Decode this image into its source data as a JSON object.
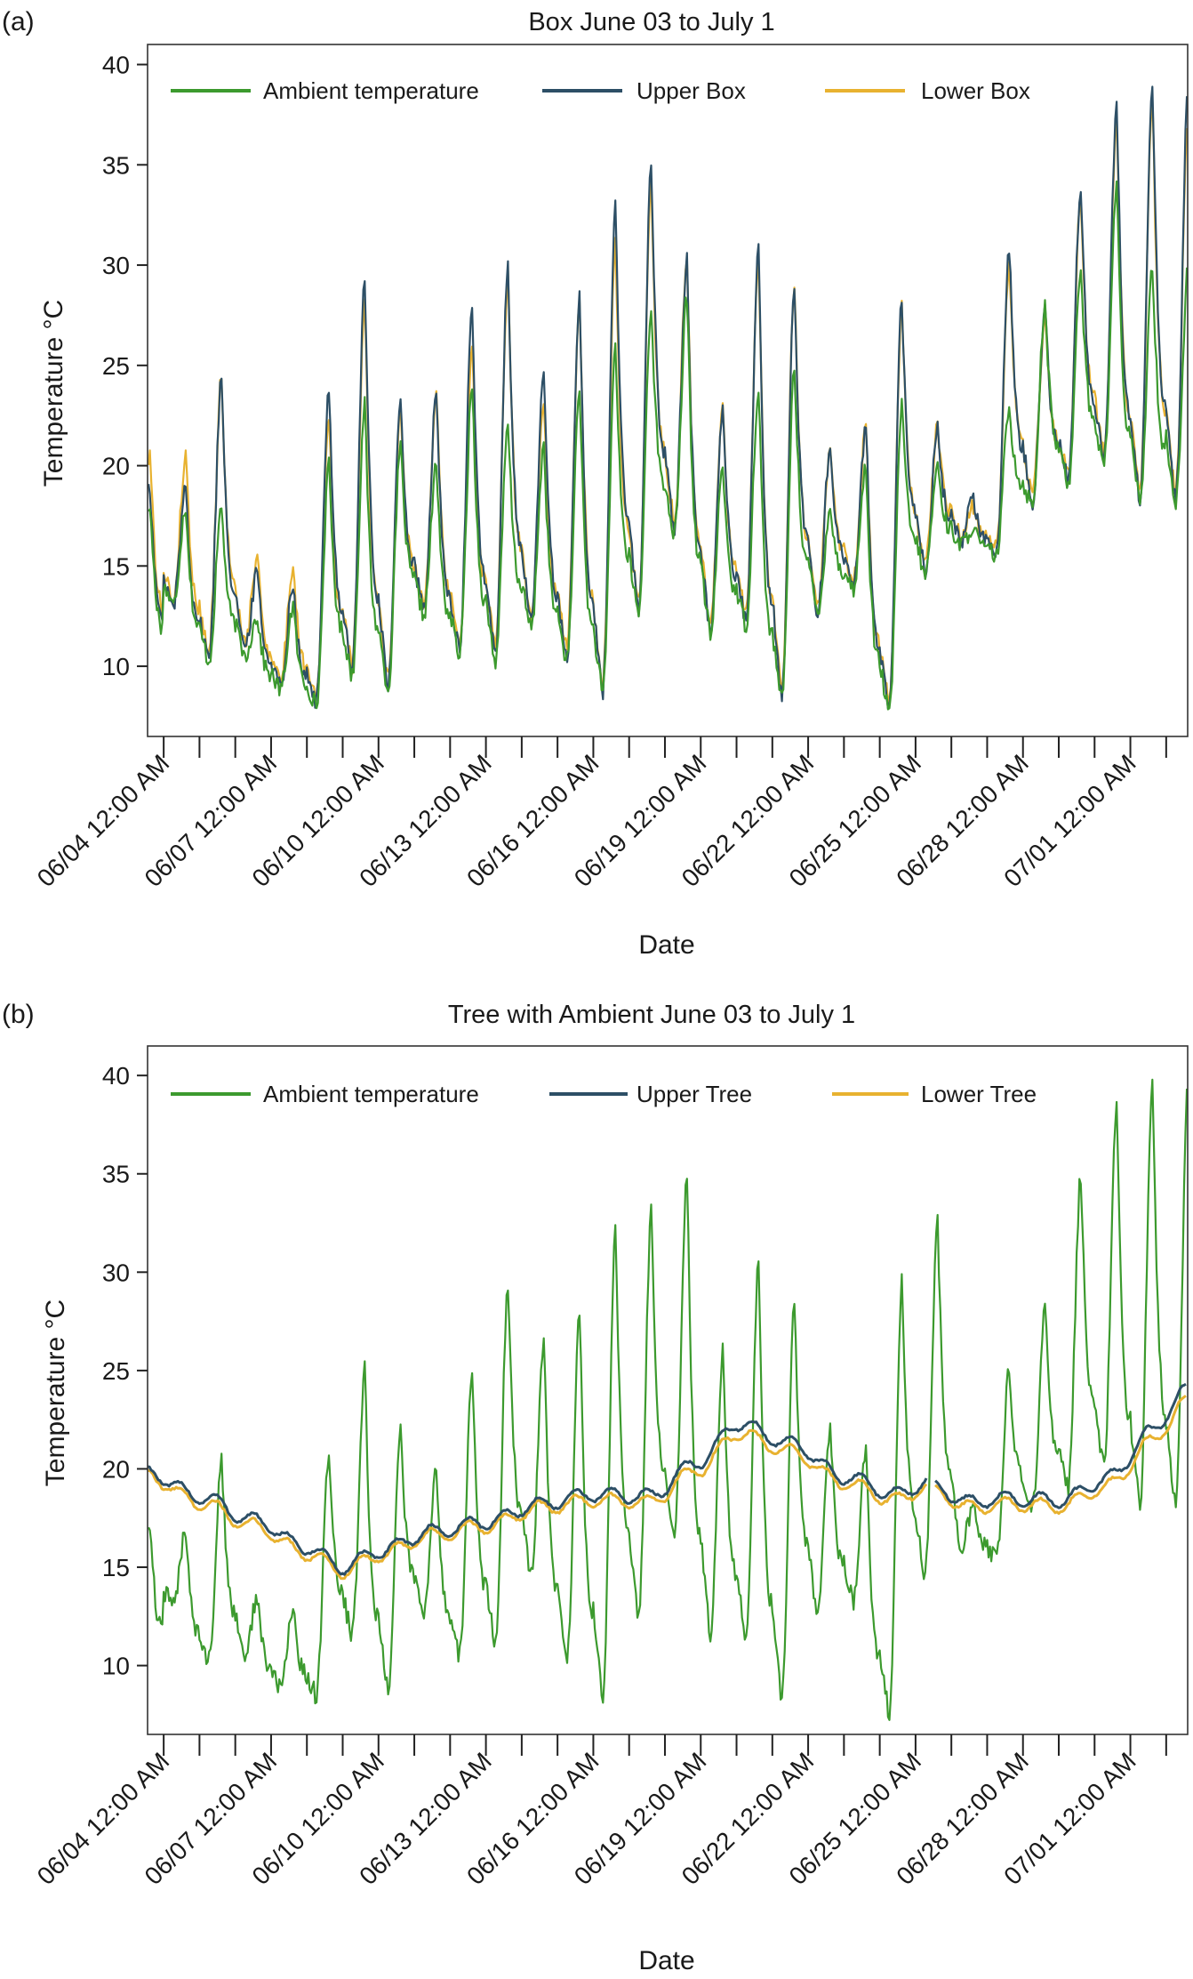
{
  "colors": {
    "ambient": "#3c9a2e",
    "upper": "#2d4f66",
    "lower": "#e8b230"
  },
  "chart_data": [
    {
      "type": "line",
      "panel_label": "(a)",
      "title": "Box June 03 to July 1",
      "xlabel": "Date",
      "ylabel": "Temperature °C",
      "ylim": [
        6.5,
        41
      ],
      "yticks": [
        10,
        15,
        20,
        25,
        30,
        35,
        40
      ],
      "xlim_days": [
        3.55,
        32.6
      ],
      "x_tick_labels": [
        "06/04 12:00 AM",
        "06/07 12:00 AM",
        "06/10 12:00 AM",
        "06/13 12:00 AM",
        "06/16 12:00 AM",
        "06/19 12:00 AM",
        "06/22 12:00 AM",
        "06/25 12:00 AM",
        "06/28 12:00 AM",
        "07/01 12:00 AM"
      ],
      "legend": [
        "Ambient temperature",
        "Upper Box",
        "Lower Box"
      ],
      "legend_position": "top",
      "series": [
        {
          "name": "Ambient temperature",
          "color_key": "ambient",
          "daily_min": [
            13.0,
            10.2,
            10.5,
            8.8,
            8.0,
            9.5,
            8.8,
            12.5,
            10.5,
            10.2,
            11.8,
            10.2,
            8.5,
            12.5,
            16.5,
            11.5,
            12.0,
            8.2,
            12.5,
            13.8,
            7.5,
            14.5,
            16.0,
            15.5,
            18.0,
            19.0,
            20.0,
            18.0
          ],
          "daily_max": [
            18.0,
            18.0,
            12.5,
            13.0,
            20.0,
            23.0,
            21.0,
            20.0,
            24.0,
            22.0,
            21.0,
            24.0,
            26.0,
            28.0,
            28.5,
            20.0,
            24.0,
            25.0,
            18.0,
            20.0,
            23.0,
            20.0,
            17.0,
            23.0,
            28.0,
            30.0,
            34.0,
            30.0
          ]
        },
        {
          "name": "Upper Box",
          "color_key": "upper",
          "daily_min": [
            13.0,
            10.4,
            10.7,
            9.0,
            8.2,
            9.7,
            9.0,
            12.7,
            10.7,
            10.4,
            12.0,
            10.4,
            8.7,
            12.7,
            16.7,
            11.7,
            12.2,
            8.4,
            12.7,
            14.0,
            7.7,
            14.7,
            16.2,
            15.7,
            18.2,
            19.2,
            20.2,
            18.2
          ],
          "daily_max": [
            19.0,
            24.5,
            14.8,
            14.2,
            24.0,
            29.3,
            23.3,
            23.5,
            28.0,
            30.0,
            24.8,
            28.5,
            33.0,
            35.0,
            30.5,
            23.0,
            31.0,
            29.0,
            21.0,
            22.0,
            28.3,
            22.0,
            18.5,
            31.0,
            28.0,
            34.0,
            38.0,
            39.3
          ]
        },
        {
          "name": "Lower Box",
          "color_key": "lower",
          "daily_min": [
            13.2,
            10.8,
            11.0,
            9.3,
            8.6,
            10.0,
            9.3,
            13.0,
            11.0,
            10.8,
            12.3,
            10.8,
            9.0,
            13.0,
            17.0,
            12.0,
            12.5,
            8.7,
            13.0,
            14.3,
            8.0,
            15.0,
            16.5,
            16.0,
            18.5,
            19.5,
            20.5,
            18.5
          ],
          "daily_max": [
            20.5,
            24.5,
            15.5,
            15.0,
            22.5,
            28.0,
            23.0,
            23.5,
            26.0,
            29.5,
            23.5,
            28.5,
            31.0,
            34.0,
            30.5,
            23.0,
            30.5,
            29.0,
            21.0,
            22.0,
            28.0,
            22.0,
            18.0,
            30.0,
            27.5,
            33.5,
            37.0,
            38.0
          ]
        }
      ]
    },
    {
      "type": "line",
      "panel_label": "(b)",
      "title": "Tree with Ambient June 03 to July 1",
      "xlabel": "Date",
      "ylabel": "Temperature °C",
      "ylim": [
        6.5,
        41.5
      ],
      "yticks": [
        10,
        15,
        20,
        25,
        30,
        35,
        40
      ],
      "xlim_days": [
        3.55,
        32.6
      ],
      "x_tick_labels": [
        "06/04 12:00 AM",
        "06/07 12:00 AM",
        "06/10 12:00 AM",
        "06/13 12:00 AM",
        "06/16 12:00 AM",
        "06/19 12:00 AM",
        "06/22 12:00 AM",
        "06/25 12:00 AM",
        "06/28 12:00 AM",
        "07/01 12:00 AM"
      ],
      "legend": [
        "Ambient temperature",
        "Upper Tree",
        "Lower Tree"
      ],
      "legend_position": "top",
      "series": [
        {
          "name": "Ambient temperature",
          "color_key": "ambient",
          "daily_min": [
            13.0,
            10.2,
            10.5,
            8.8,
            8.5,
            11.5,
            8.8,
            12.5,
            10.5,
            11.0,
            14.5,
            10.2,
            8.5,
            12.5,
            16.5,
            11.5,
            11.5,
            8.2,
            12.5,
            13.2,
            7.5,
            14.5,
            16.0,
            15.5,
            18.0,
            19.0,
            20.0,
            18.0
          ],
          "daily_max": [
            17.0,
            20.5,
            13.5,
            13.0,
            21.0,
            25.0,
            22.0,
            20.0,
            25.0,
            29.5,
            26.5,
            28.0,
            32.0,
            33.0,
            35.0,
            26.0,
            30.5,
            28.5,
            22.0,
            21.0,
            29.5,
            32.5,
            18.0,
            25.0,
            28.0,
            35.0,
            38.5,
            40.0
          ]
        },
        {
          "name": "Upper Tree",
          "color_key": "upper",
          "x": [
            3.55,
            5.0,
            6.5,
            8.0,
            9.0,
            10.0,
            11.5,
            13.0,
            14.5,
            16.0,
            17.5,
            19.0,
            20.0,
            21.5,
            23.0,
            24.5,
            25.4,
            25.6,
            26.5,
            27.5,
            29.0,
            30.5,
            31.5,
            32.6
          ],
          "y": [
            19.8,
            18.6,
            17.4,
            16.0,
            15.0,
            15.8,
            16.8,
            17.3,
            18.2,
            18.7,
            18.6,
            20.4,
            22.3,
            21.3,
            19.6,
            18.7,
            19.4,
            19.0,
            18.3,
            18.5,
            18.4,
            19.6,
            21.8,
            24.0
          ]
        },
        {
          "name": "Lower Tree",
          "color_key": "lower",
          "x": [
            3.55,
            5.0,
            6.5,
            8.0,
            9.0,
            10.0,
            11.5,
            13.0,
            14.5,
            16.0,
            17.5,
            19.0,
            20.0,
            21.5,
            23.0,
            24.5,
            25.4,
            25.6,
            26.5,
            27.5,
            29.0,
            30.5,
            31.5,
            32.6
          ],
          "y": [
            19.6,
            18.3,
            17.1,
            15.7,
            14.8,
            15.6,
            16.6,
            17.1,
            18.0,
            18.4,
            18.3,
            20.0,
            21.8,
            20.9,
            19.3,
            18.4,
            19.2,
            18.8,
            18.0,
            18.2,
            18.1,
            19.2,
            21.3,
            23.4
          ]
        }
      ]
    }
  ]
}
